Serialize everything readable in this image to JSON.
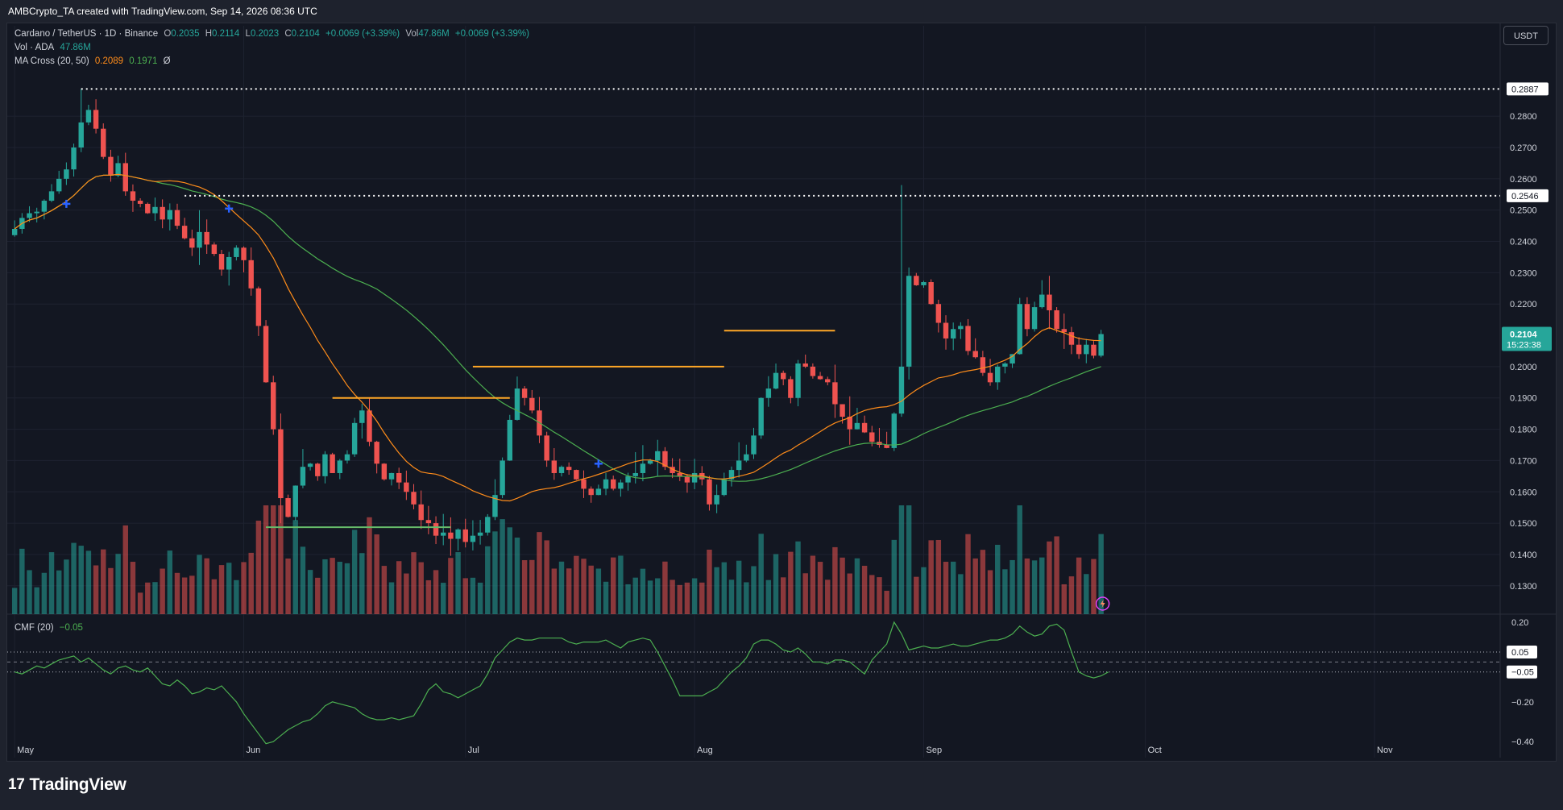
{
  "header": {
    "attribution": "AMBCrypto_TA created with TradingView.com, Sep 14, 2026 08:36 UTC"
  },
  "legend": {
    "symbol": "Cardano / TetherUS · 1D · Binance",
    "o_label": "O",
    "o_value": "0.2035",
    "h_label": "H",
    "h_value": "0.2114",
    "l_label": "L",
    "l_value": "0.2023",
    "c_label": "C",
    "c_value": "0.2104",
    "change": "+0.0069 (+3.39%)",
    "vol_label": "Vol",
    "vol_value": "47.86M",
    "vol_change": "+0.0069 (+3.39%)",
    "vol_ada_label": "Vol · ADA",
    "vol_ada_value": "47.86M",
    "ma_label": "MA Cross (20, 50)",
    "ma_fast": "0.2089",
    "ma_slow": "0.1971",
    "ma_extra": "Ø",
    "cmf_label": "CMF (20)",
    "cmf_value": "−0.05"
  },
  "toolbar": {
    "currency": "USDT"
  },
  "brand": {
    "logo_mark": "17",
    "logo_text": "TradingView"
  },
  "colors": {
    "up": "#26a69a",
    "down": "#ef5350",
    "ma_fast": "#ff8c1a",
    "ma_slow": "#4caf50",
    "cmf": "#4caf50",
    "resistance": "#ffa726",
    "support": "#66bb6a"
  },
  "chart_data": [
    {
      "type": "candlestick",
      "title": "Cardano / TetherUS · 1D · Binance",
      "x_axis": {
        "labels": [
          "May",
          "Jun",
          "Jul",
          "Aug",
          "Sep",
          "Oct",
          "Nov"
        ],
        "label_dates": [
          "2026-05-01",
          "2026-06-01",
          "2026-07-01",
          "2026-08-01",
          "2026-09-01",
          "2026-10-01",
          "2026-11-01"
        ],
        "range": [
          "2026-04-30",
          "2026-11-18"
        ]
      },
      "y_axis": {
        "ticks": [
          "0.2800",
          "0.2700",
          "0.2600",
          "0.2500",
          "0.2400",
          "0.2300",
          "0.2200",
          "0.2000",
          "0.1900",
          "0.1800",
          "0.1700",
          "0.1600",
          "0.1500",
          "0.1400",
          "0.1300"
        ],
        "tick_values": [
          0.28,
          0.27,
          0.26,
          0.25,
          0.24,
          0.23,
          0.22,
          0.2,
          0.19,
          0.18,
          0.17,
          0.16,
          0.15,
          0.14,
          0.13
        ],
        "range": [
          0.123,
          0.296
        ]
      },
      "last_price": {
        "value": 0.2104,
        "label": "0.2104",
        "countdown": "15:23:38"
      },
      "price_levels": [
        {
          "value": 0.2887,
          "label": "0.2887",
          "style": "dotted",
          "from_date": "2026-05-10"
        },
        {
          "value": 0.2546,
          "label": "0.2546",
          "style": "dotted",
          "from_date": "2026-05-24"
        }
      ],
      "trend_segments": [
        {
          "from": "2026-06-13",
          "to": "2026-07-07",
          "value": 0.19,
          "color": "#ffa726"
        },
        {
          "from": "2026-07-02",
          "to": "2026-08-05",
          "value": 0.2,
          "color": "#ffa726"
        },
        {
          "from": "2026-08-05",
          "to": "2026-08-20",
          "value": 0.2115,
          "color": "#ffa726"
        },
        {
          "from": "2026-06-04",
          "to": "2026-06-29",
          "value": 0.1487,
          "color": "#66bb6a"
        }
      ],
      "cross_markers": [
        {
          "date": "2026-05-08",
          "value": 0.252
        },
        {
          "date": "2026-05-30",
          "value": 0.2505
        },
        {
          "date": "2026-07-19",
          "value": 0.169
        }
      ],
      "candles_close": [
        0.244,
        0.2475,
        0.249,
        0.2495,
        0.253,
        0.256,
        0.26,
        0.263,
        0.27,
        0.278,
        0.282,
        0.276,
        0.267,
        0.261,
        0.265,
        0.256,
        0.253,
        0.252,
        0.249,
        0.251,
        0.247,
        0.25,
        0.245,
        0.241,
        0.238,
        0.243,
        0.239,
        0.236,
        0.231,
        0.235,
        0.238,
        0.234,
        0.225,
        0.213,
        0.195,
        0.18,
        0.158,
        0.152,
        0.162,
        0.168,
        0.169,
        0.165,
        0.172,
        0.166,
        0.17,
        0.172,
        0.182,
        0.186,
        0.176,
        0.169,
        0.164,
        0.166,
        0.163,
        0.16,
        0.156,
        0.151,
        0.15,
        0.146,
        0.147,
        0.145,
        0.148,
        0.144,
        0.146,
        0.147,
        0.152,
        0.159,
        0.17,
        0.183,
        0.193,
        0.19,
        0.186,
        0.178,
        0.17,
        0.166,
        0.168,
        0.167,
        0.164,
        0.161,
        0.159,
        0.161,
        0.164,
        0.161,
        0.163,
        0.165,
        0.166,
        0.169,
        0.17,
        0.173,
        0.168,
        0.166,
        0.165,
        0.163,
        0.166,
        0.164,
        0.156,
        0.159,
        0.164,
        0.167,
        0.17,
        0.172,
        0.178,
        0.19,
        0.193,
        0.198,
        0.196,
        0.19,
        0.201,
        0.2,
        0.197,
        0.196,
        0.195,
        0.188,
        0.184,
        0.18,
        0.182,
        0.179,
        0.176,
        0.175,
        0.174,
        0.185,
        0.2,
        0.229,
        0.226,
        0.227,
        0.22,
        0.214,
        0.209,
        0.212,
        0.213,
        0.205,
        0.203,
        0.198,
        0.195,
        0.2,
        0.201,
        0.204,
        0.22,
        0.212,
        0.219,
        0.223,
        0.218,
        0.212,
        0.211,
        0.207,
        0.204,
        0.207,
        0.2035,
        0.2104
      ],
      "volume_panel": {
        "last": "47.86M"
      },
      "ma_cross": {
        "periods": [
          20,
          50
        ],
        "fast_last": 0.2089,
        "slow_last": 0.1971
      }
    },
    {
      "type": "line",
      "title": "CMF (20)",
      "series": [
        {
          "name": "CMF (20)",
          "last": -0.05
        }
      ],
      "y_axis": {
        "ticks": [
          "0.20",
          "−0.20",
          "−0.40"
        ],
        "tick_values": [
          0.2,
          -0.2,
          -0.4
        ],
        "range": [
          -0.48,
          0.24
        ]
      },
      "levels": [
        {
          "value": 0.05,
          "label": "0.05"
        },
        {
          "value": -0.05,
          "label": "−0.05"
        }
      ],
      "values": [
        -0.05,
        -0.06,
        -0.04,
        -0.02,
        -0.03,
        -0.01,
        0.01,
        0.02,
        0.03,
        0.0,
        0.02,
        -0.01,
        -0.04,
        -0.06,
        -0.03,
        -0.02,
        -0.04,
        -0.05,
        -0.03,
        -0.07,
        -0.11,
        -0.12,
        -0.09,
        -0.12,
        -0.16,
        -0.15,
        -0.13,
        -0.14,
        -0.12,
        -0.16,
        -0.2,
        -0.26,
        -0.31,
        -0.36,
        -0.41,
        -0.4,
        -0.37,
        -0.34,
        -0.32,
        -0.3,
        -0.29,
        -0.26,
        -0.22,
        -0.2,
        -0.21,
        -0.22,
        -0.23,
        -0.26,
        -0.28,
        -0.29,
        -0.29,
        -0.28,
        -0.29,
        -0.28,
        -0.27,
        -0.21,
        -0.14,
        -0.11,
        -0.15,
        -0.16,
        -0.18,
        -0.16,
        -0.14,
        -0.12,
        -0.06,
        0.02,
        0.06,
        0.1,
        0.12,
        0.11,
        0.11,
        0.12,
        0.12,
        0.12,
        0.12,
        0.1,
        0.09,
        0.1,
        0.1,
        0.1,
        0.11,
        0.09,
        0.07,
        0.1,
        0.11,
        0.12,
        0.11,
        0.05,
        -0.02,
        -0.09,
        -0.17,
        -0.17,
        -0.17,
        -0.17,
        -0.15,
        -0.13,
        -0.09,
        -0.05,
        -0.02,
        0.02,
        0.09,
        0.11,
        0.11,
        0.09,
        0.06,
        0.05,
        0.07,
        0.04,
        0.0,
        0.0,
        -0.01,
        0.01,
        0.01,
        0.0,
        -0.03,
        -0.06,
        0.01,
        0.05,
        0.09,
        0.2,
        0.14,
        0.06,
        0.07,
        0.08,
        0.07,
        0.07,
        0.08,
        0.09,
        0.08,
        0.08,
        0.09,
        0.1,
        0.11,
        0.11,
        0.12,
        0.14,
        0.18,
        0.15,
        0.13,
        0.14,
        0.18,
        0.19,
        0.16,
        0.05,
        -0.05,
        -0.07,
        -0.08,
        -0.07,
        -0.05
      ]
    }
  ]
}
